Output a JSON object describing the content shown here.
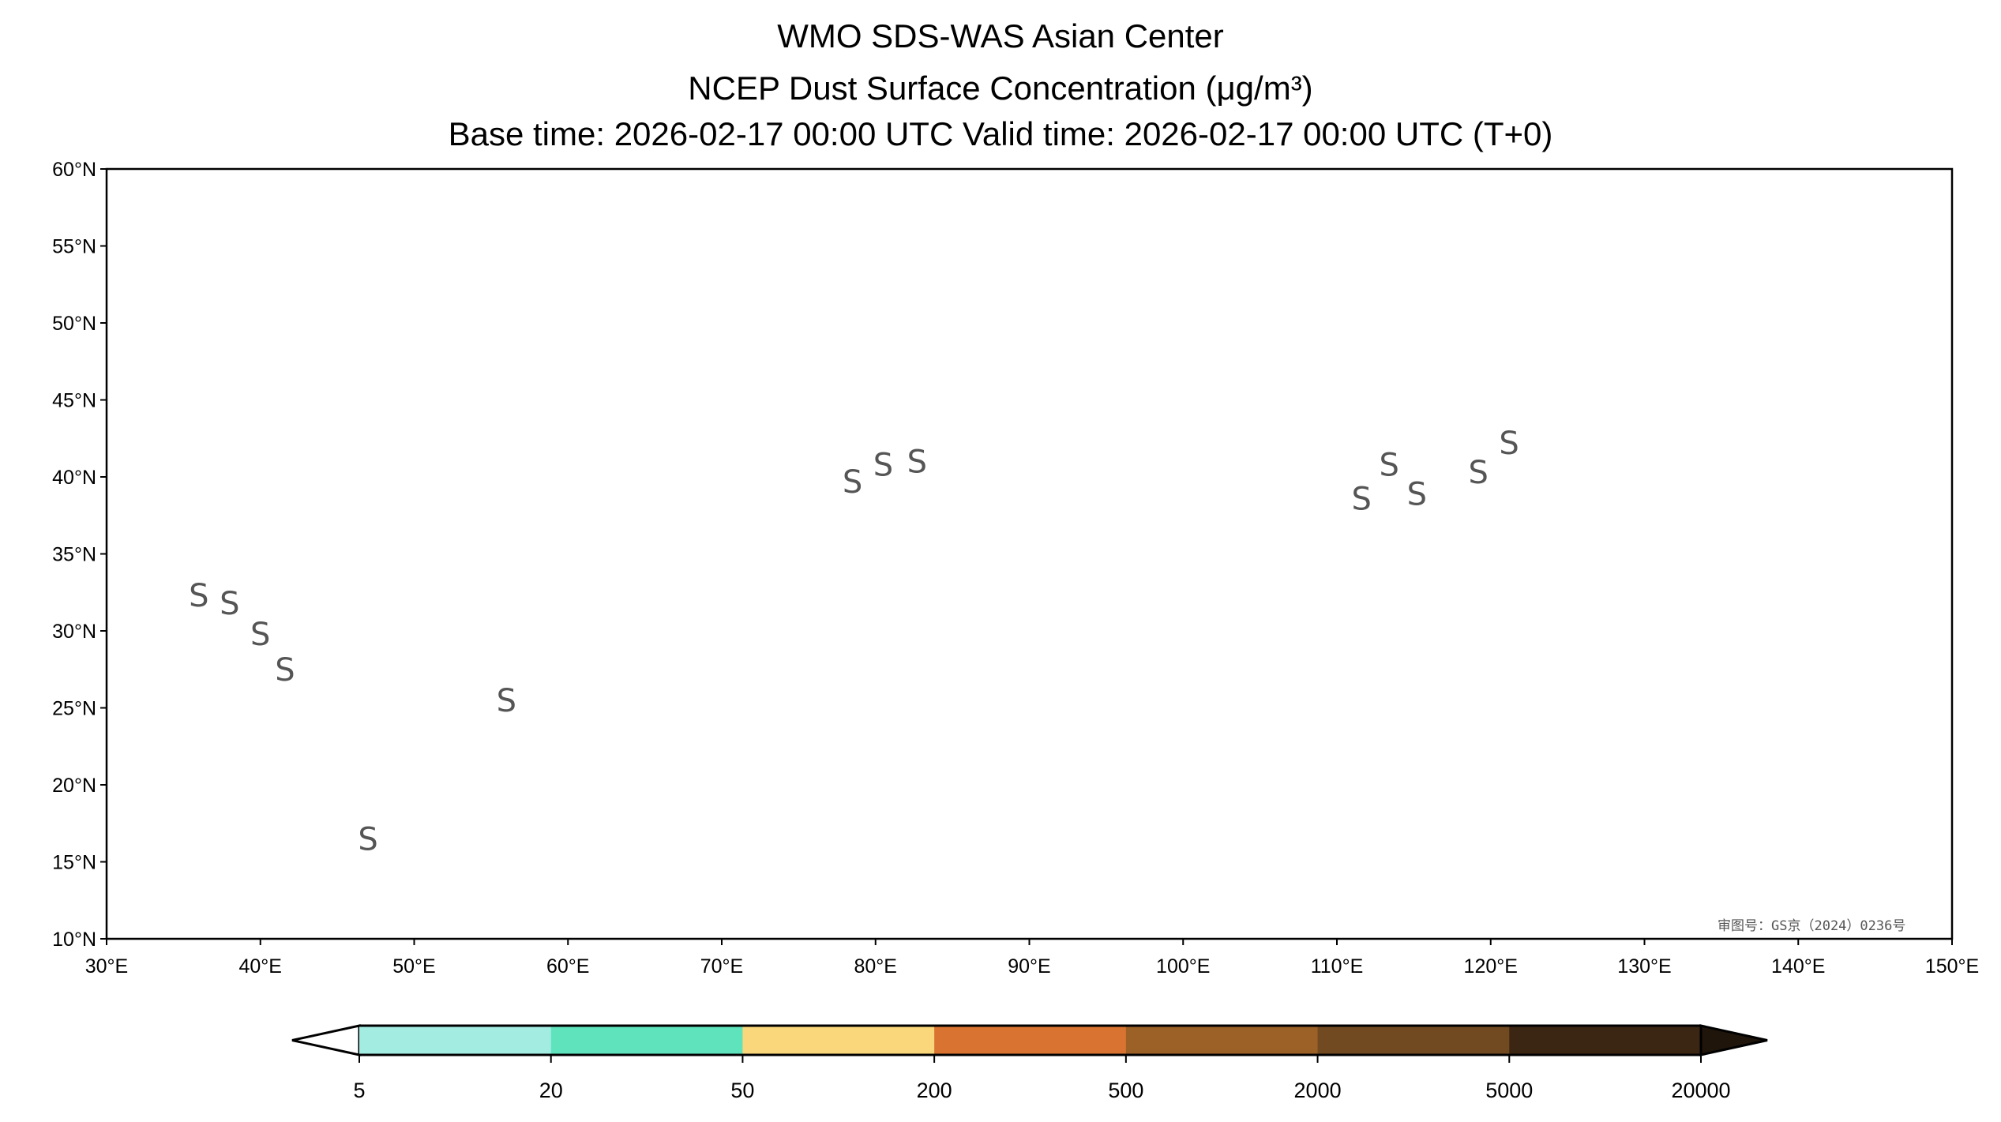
{
  "title": {
    "line1": "WMO SDS-WAS Asian Center",
    "line2": "NCEP Dust Surface Concentration (μg/m³)",
    "line3": "Base time: 2026-02-17 00:00 UTC Valid time: 2026-02-17 00:00 UTC (T+0)"
  },
  "map": {
    "lon_range": [
      30,
      150
    ],
    "lat_range": [
      10,
      60
    ],
    "lat_ticks": [
      "60°N",
      "55°N",
      "50°N",
      "45°N",
      "40°N",
      "35°N",
      "30°N",
      "25°N",
      "20°N",
      "15°N",
      "10°N"
    ],
    "lon_ticks": [
      "30°E",
      "40°E",
      "50°E",
      "60°E",
      "70°E",
      "80°E",
      "90°E",
      "100°E",
      "110°E",
      "120°E",
      "130°E",
      "140°E",
      "150°E"
    ],
    "ocean_color": "#a8c4ec",
    "dust_storm_symbol": "S",
    "watermark": "审图号：GS京（2024）0236号"
  },
  "colorbar": {
    "levels": [
      "5",
      "20",
      "50",
      "200",
      "500",
      "2000",
      "5000",
      "20000"
    ],
    "colors": [
      "#a3ece2",
      "#5fe3bc",
      "#fad77a",
      "#d97332",
      "#9c6127",
      "#724a22",
      "#3b2513"
    ],
    "over_color": "#1f150b",
    "under_color": "#ffffff"
  }
}
